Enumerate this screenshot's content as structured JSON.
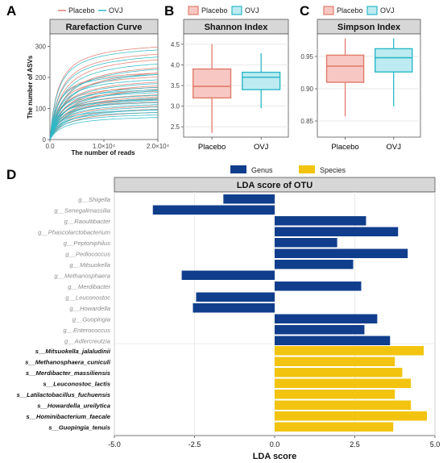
{
  "panels": {
    "a": "A",
    "b": "B",
    "c": "C",
    "d": "D"
  },
  "legend_labels": {
    "placebo": "Placebo",
    "ovj": "OVJ",
    "genus": "Genus",
    "species": "Species"
  },
  "colors": {
    "placebo": "#e07b6a",
    "placebo_fill": "#f7c8c3",
    "ovj": "#2bb8c8",
    "ovj_fill": "#bdebf1",
    "genus": "#103e8c",
    "species": "#f2c40f",
    "title_bar": "#d7d7d7"
  },
  "chart_data": [
    {
      "id": "rarefaction",
      "type": "line",
      "title": "Rarefaction Curve",
      "xlabel": "The number of reads",
      "ylabel": "The number of ASVs",
      "xlim": [
        0,
        20000
      ],
      "ylim": [
        0,
        340
      ],
      "xticks": [
        0,
        10000,
        20000
      ],
      "xtick_labels": [
        "0.0",
        "1.0×10⁴",
        "2.0×10⁴"
      ],
      "yticks": [
        0,
        100,
        200,
        300
      ],
      "ytick_labels": [
        "0",
        "100",
        "200",
        "300"
      ],
      "grid": false,
      "series": [
        {
          "name": "Placebo",
          "color": "#e07b6a",
          "asymptotes": [
            320,
            300,
            285,
            260,
            245,
            230,
            220,
            205,
            195,
            185,
            180,
            170,
            160,
            155,
            150,
            140,
            132,
            120,
            110,
            100
          ]
        },
        {
          "name": "OVJ",
          "color": "#2bb8c8",
          "asymptotes": [
            310,
            290,
            270,
            255,
            240,
            225,
            210,
            200,
            190,
            180,
            172,
            165,
            158,
            150,
            145,
            138,
            130,
            125,
            118,
            110,
            102,
            95,
            88,
            80
          ]
        }
      ]
    },
    {
      "id": "shannon",
      "type": "box",
      "title": "Shannon Index",
      "categories": [
        "Placebo",
        "OVJ"
      ],
      "ylim": [
        2.25,
        4.75
      ],
      "yticks": [
        2.5,
        3.0,
        3.5,
        4.0,
        4.5
      ],
      "ytick_labels": [
        "2.5",
        "3.0",
        "3.5",
        "4.0",
        "4.5"
      ],
      "series": [
        {
          "name": "Placebo",
          "min": 2.35,
          "q1": 3.2,
          "median": 3.48,
          "q3": 3.9,
          "max": 4.5
        },
        {
          "name": "OVJ",
          "min": 2.95,
          "q1": 3.4,
          "median": 3.7,
          "q3": 3.82,
          "max": 4.28
        }
      ]
    },
    {
      "id": "simpson",
      "type": "box",
      "title": "Simpson Index",
      "categories": [
        "Placebo",
        "OVJ"
      ],
      "ylim": [
        0.825,
        0.985
      ],
      "yticks": [
        0.85,
        0.9,
        0.95
      ],
      "ytick_labels": [
        "0.85",
        "0.90",
        "0.95"
      ],
      "series": [
        {
          "name": "Placebo",
          "min": 0.857,
          "q1": 0.91,
          "median": 0.935,
          "q3": 0.952,
          "max": 0.978
        },
        {
          "name": "OVJ",
          "min": 0.873,
          "q1": 0.926,
          "median": 0.948,
          "q3": 0.962,
          "max": 0.978
        }
      ]
    },
    {
      "id": "lda",
      "type": "bar",
      "orientation": "horizontal",
      "title": "LDA score of OTU",
      "xlabel": "LDA score",
      "xlim": [
        -5,
        5
      ],
      "xticks": [
        -5,
        -2.5,
        0,
        2.5,
        5
      ],
      "xtick_labels": [
        "-5.0",
        "-2.5",
        "0.0",
        "2.5",
        "5.0"
      ],
      "grid": true,
      "series": [
        {
          "name": "Genus",
          "color": "#103e8c",
          "categories": [
            "g__Shigella",
            "g__Senegalimassilia",
            "g__Raoultibacter",
            "g__Phascolarctobacterium",
            "g__Peptoniphilus",
            "g__Pediococcus",
            "g__Mitsuokella",
            "g__Methanosphaera",
            "g__Merdibacter",
            "g__Leuconostoc",
            "g__Howardella",
            "g__Guopingia",
            "g__Enterococcus",
            "g__Adlercreutzia"
          ],
          "values": [
            -1.6,
            -3.8,
            2.85,
            3.85,
            1.95,
            4.15,
            2.45,
            -2.9,
            2.7,
            -2.45,
            -2.55,
            3.2,
            2.8,
            3.6
          ]
        },
        {
          "name": "Species",
          "color": "#f2c40f",
          "categories": [
            "s__Mitsuokella_jalaludinii",
            "s__Methanosphaera_cuniculi",
            "s__Merdibacter_massiliensis",
            "s__Leuconostoc_lactis",
            "s__Latilactobacillus_fuchuensis",
            "s__Howardella_ureilytica",
            "s__Hominibacterium_faecale",
            "s__Guopingia_tenuis"
          ],
          "values": [
            4.65,
            3.75,
            3.98,
            4.25,
            3.75,
            4.25,
            4.75,
            3.7
          ]
        }
      ]
    }
  ]
}
